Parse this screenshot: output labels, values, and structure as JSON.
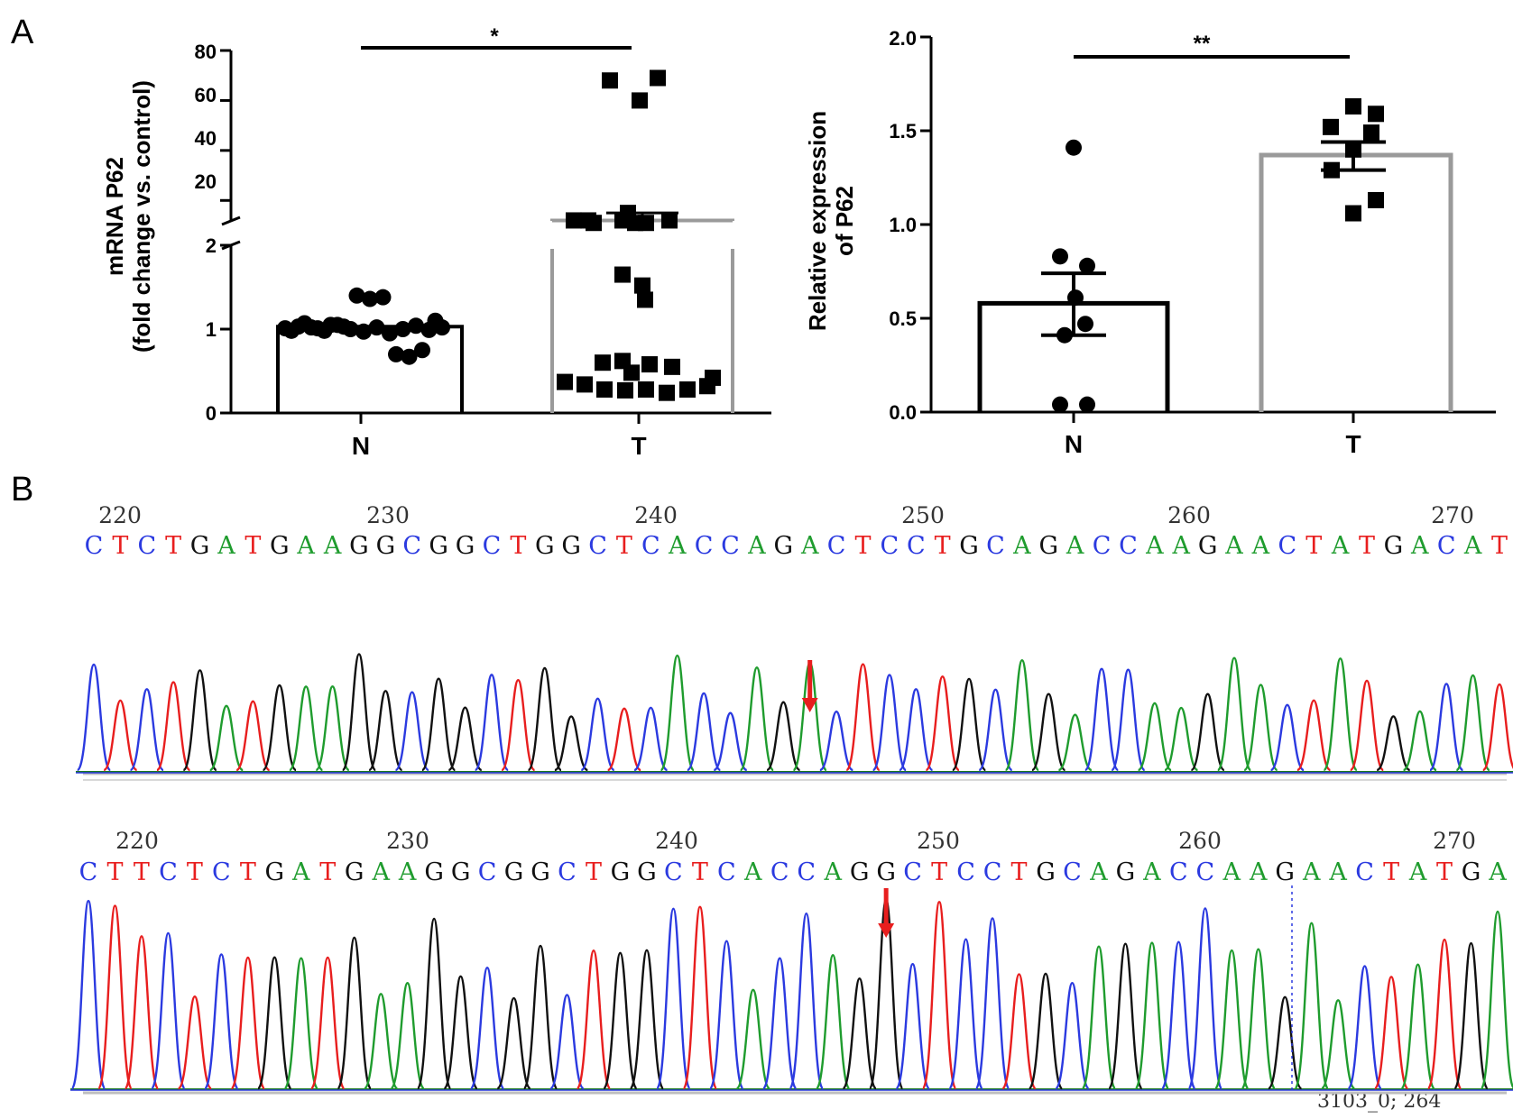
{
  "panel_labels": {
    "a": "A",
    "b": "B"
  },
  "chart_data": [
    {
      "type": "scatter",
      "chart_style": "dot-plot with bars (mean ± SEM), broken y-axis",
      "ylabel_line1": "mRNA P62",
      "ylabel_line2": "(fold change vs. control)",
      "categories": [
        "N",
        "T"
      ],
      "lower_ticks": [
        "0",
        "1",
        "2"
      ],
      "upper_ticks": [
        "20",
        "40",
        "60",
        "80"
      ],
      "y_lower_range": [
        0,
        2
      ],
      "y_upper_range": [
        10,
        80
      ],
      "significance": "*",
      "series": [
        {
          "category": "N",
          "marker": "circle",
          "bar_mean": 1.03,
          "points": [
            1.01,
            1.03,
            1.02,
            0.98,
            1.05,
            1.0,
            0.97,
            1.02,
            0.95,
            1.0,
            1.04,
            0.99,
            1.02,
            0.98,
            1.07,
            1.01,
            1.05,
            1.03,
            1.4,
            1.36,
            1.38,
            0.7,
            0.67,
            0.75,
            1.1
          ]
        },
        {
          "category": "T",
          "marker": "square",
          "bar_mean": 12,
          "sem_upper": 15,
          "points": [
            68,
            69,
            60,
            12,
            11,
            12,
            11,
            12,
            12,
            11,
            15,
            1.65,
            1.52,
            1.35,
            0.62,
            0.6,
            0.58,
            0.55,
            0.48,
            0.42,
            0.37,
            0.34,
            0.28,
            0.27,
            0.28,
            0.24,
            0.28,
            0.32
          ]
        }
      ]
    },
    {
      "type": "scatter",
      "chart_style": "dot-plot with bars (mean ± SEM)",
      "ylabel_line1": "Relative expression",
      "ylabel_line2": "of P62",
      "categories": [
        "N",
        "T"
      ],
      "ticks": [
        "0.0",
        "0.5",
        "1.0",
        "1.5",
        "2.0"
      ],
      "ylim": [
        0,
        2.0
      ],
      "significance": "**",
      "series": [
        {
          "category": "N",
          "marker": "circle",
          "bar_mean": 0.58,
          "sem": [
            0.41,
            0.74
          ],
          "points": [
            1.41,
            0.83,
            0.78,
            0.61,
            0.47,
            0.41,
            0.04,
            0.04
          ]
        },
        {
          "category": "T",
          "marker": "square",
          "bar_mean": 1.37,
          "sem": [
            1.29,
            1.44
          ],
          "points": [
            1.63,
            1.59,
            1.52,
            1.49,
            1.4,
            1.29,
            1.13,
            1.06
          ]
        }
      ]
    }
  ],
  "chromatograms": [
    {
      "positions": [
        "220",
        "230",
        "240",
        "250",
        "260",
        "270"
      ],
      "sequence": "CTCTGATGAAGGCGGCTGGCTCACCAGACTCCTGCAGACCAAGAACTATGACAT",
      "arrow_index": 27
    },
    {
      "positions": [
        "220",
        "230",
        "240",
        "250",
        "260",
        "270"
      ],
      "sequence": "CTTCTCTGATGAAGGCGGCTGGCTCACCAGGCTCCTGCAGACCAAGAACTATGA",
      "arrow_index": 30,
      "trace_info": "3103_0; 264"
    }
  ],
  "base_colors": {
    "A": "#1f9c2e",
    "C": "#2b3ae0",
    "G": "#111111",
    "T": "#e81e1e"
  },
  "accent_color": "#e81e1e",
  "bar_colors": {
    "N": "#000000",
    "T": "#9a9a9a"
  }
}
